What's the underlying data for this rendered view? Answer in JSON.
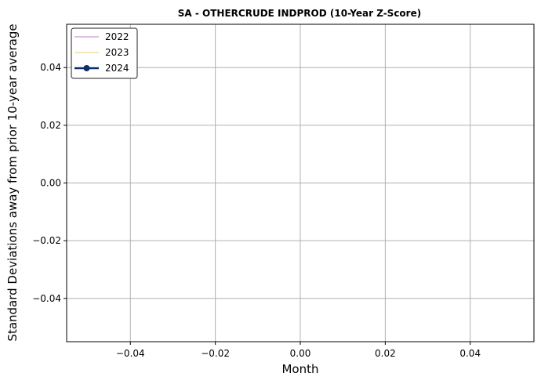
{
  "chart_data": {
    "type": "line",
    "title": "SA - OTHERCRUDE INDPROD (10-Year Z-Score)",
    "xlabel": "Month",
    "ylabel": "Standard Deviations away from prior 10-year average",
    "xlim": [
      -0.055,
      0.055
    ],
    "ylim": [
      -0.055,
      0.055
    ],
    "x_ticks": [
      -0.04,
      -0.02,
      0.0,
      0.02,
      0.04
    ],
    "y_ticks": [
      -0.04,
      -0.02,
      0.0,
      0.02,
      0.04
    ],
    "x_tick_labels": [
      "−0.04",
      "−0.02",
      "0.00",
      "0.02",
      "0.04"
    ],
    "y_tick_labels": [
      "−0.04",
      "−0.02",
      "0.00",
      "0.02",
      "0.04"
    ],
    "grid": true,
    "legend_position": "top-left",
    "series": [
      {
        "name": "2022",
        "color": "#d8a8dc",
        "marker": false,
        "values": []
      },
      {
        "name": "2023",
        "color": "#efe1a6",
        "marker": false,
        "values": []
      },
      {
        "name": "2024",
        "color": "#0b2f66",
        "marker": true,
        "values": []
      }
    ]
  }
}
